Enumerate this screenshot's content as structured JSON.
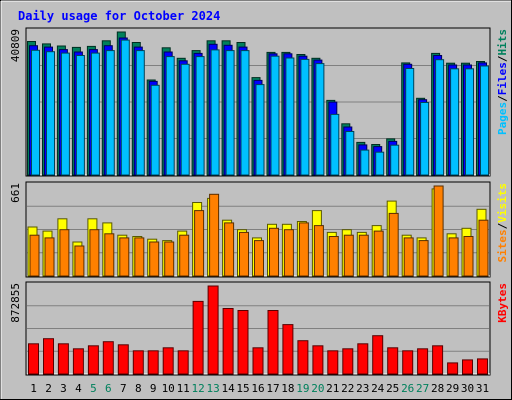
{
  "chart_data": {
    "type": "bar",
    "title": "Daily usage for October 2024",
    "days": [
      "1",
      "2",
      "3",
      "4",
      "5",
      "6",
      "7",
      "8",
      "9",
      "10",
      "11",
      "12",
      "13",
      "14",
      "15",
      "16",
      "17",
      "18",
      "19",
      "20",
      "21",
      "22",
      "23",
      "24",
      "25",
      "26",
      "27",
      "28",
      "29",
      "30",
      "31"
    ],
    "weekend_days": [
      5,
      6,
      12,
      13,
      19,
      20,
      26,
      27
    ],
    "panels": [
      {
        "id": "hits",
        "max_label": "40809",
        "ylim": [
          0,
          40809
        ],
        "legend": [
          "Pages",
          "/",
          "Files",
          "/",
          "Hits"
        ],
        "series": [
          {
            "name": "Hits",
            "color": "#00805c",
            "values": [
              38100,
              37400,
              36800,
              36400,
              36700,
              38300,
              40809,
              37800,
              27100,
              36300,
              33300,
              35500,
              38300,
              38300,
              37800,
              27800,
              35000,
              35000,
              34400,
              33300,
              21300,
              14600,
              9300,
              8700,
              10300,
              32000,
              21900,
              34700,
              31900,
              31900,
              32400
            ]
          },
          {
            "name": "Files",
            "color": "#0000ff",
            "values": [
              36900,
              36500,
              35800,
              35100,
              35800,
              36900,
              39100,
              36500,
              26700,
              35100,
              32600,
              34700,
              37300,
              37000,
              36500,
              27000,
              34600,
              34600,
              33900,
              32800,
              20800,
              13700,
              8600,
              8100,
              9600,
              31600,
              21500,
              34100,
              31400,
              31400,
              32000
            ]
          },
          {
            "name": "Pages",
            "color": "#00c0ff",
            "values": [
              35600,
              35200,
              34800,
              34100,
              34800,
              35500,
              38500,
              35500,
              25600,
              33800,
              31600,
              33800,
              35700,
              35500,
              35500,
              25800,
              33900,
              33400,
              33000,
              31800,
              17300,
              12400,
              7100,
              6500,
              8500,
              30400,
              20700,
              32900,
              30300,
              30300,
              31100
            ]
          }
        ]
      },
      {
        "id": "visits",
        "max_label": "661",
        "ylim": [
          0,
          661
        ],
        "legend": [
          "Sites",
          "/",
          "Visits"
        ],
        "series": [
          {
            "name": "Visits",
            "color": "#ffff00",
            "values": [
              360,
              330,
              420,
              250,
              420,
              390,
              300,
              290,
              270,
              260,
              330,
              540,
              570,
              410,
              340,
              280,
              380,
              380,
              400,
              480,
              320,
              340,
              320,
              370,
              550,
              300,
              280,
              640,
              310,
              350,
              490
            ]
          },
          {
            "name": "Sites",
            "color": "#ff8000",
            "values": [
              300,
              280,
              340,
              220,
              340,
              310,
              280,
              280,
              250,
              250,
              300,
              480,
              600,
              390,
              320,
              260,
              350,
              340,
              390,
              370,
              290,
              300,
              300,
              330,
              460,
              280,
              260,
              661,
              280,
              290,
              410
            ]
          }
        ]
      },
      {
        "id": "kbytes",
        "max_label": "872855",
        "ylim": [
          0,
          872855
        ],
        "legend": [
          "KBytes"
        ],
        "series": [
          {
            "name": "KBytes",
            "color": "#ff0000",
            "values": [
              300000,
              350000,
              300000,
              250000,
              280000,
              320000,
              290000,
              230000,
              230000,
              260000,
              230000,
              720000,
              872855,
              650000,
              630000,
              260000,
              630000,
              490000,
              330000,
              280000,
              230000,
              250000,
              300000,
              380000,
              260000,
              230000,
              250000,
              280000,
              110000,
              140000,
              150000
            ]
          }
        ]
      }
    ]
  }
}
